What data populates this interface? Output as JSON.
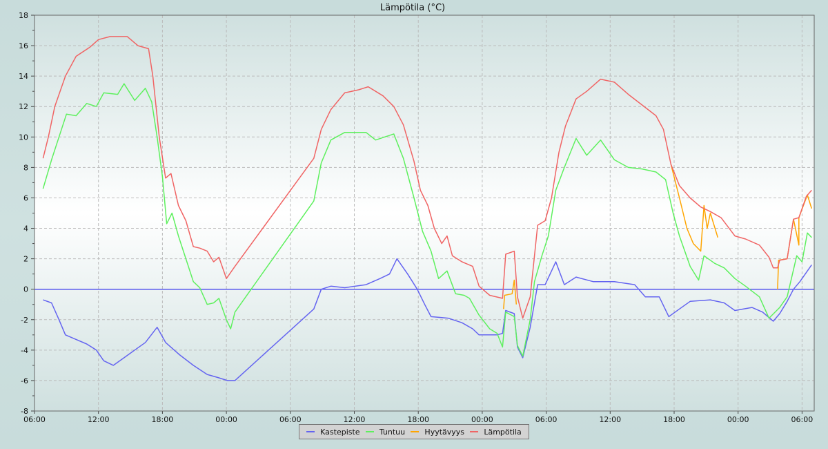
{
  "chart_data": {
    "type": "line",
    "title": "Lämpötila (°C)",
    "xlabel": "",
    "ylabel": "",
    "x_unit": "hours since first 06:00",
    "xlim": [
      0,
      73.5
    ],
    "ylim": [
      -8,
      18
    ],
    "grid": true,
    "legend_position": "bottom-center",
    "y_ticks": [
      -8,
      -6,
      -4,
      -2,
      0,
      2,
      4,
      6,
      8,
      10,
      12,
      14,
      16,
      18
    ],
    "x_ticks": [
      {
        "h": 0,
        "label": "06:00"
      },
      {
        "h": 6,
        "label": "12:00"
      },
      {
        "h": 12,
        "label": "18:00"
      },
      {
        "h": 18,
        "label": "00:00"
      },
      {
        "h": 24,
        "label": "06:00"
      },
      {
        "h": 30,
        "label": "12:00"
      },
      {
        "h": 36,
        "label": "18:00"
      },
      {
        "h": 42,
        "label": "00:00"
      },
      {
        "h": 48,
        "label": "06:00"
      },
      {
        "h": 54,
        "label": "12:00"
      },
      {
        "h": 60,
        "label": "18:00"
      },
      {
        "h": 66,
        "label": "00:00"
      },
      {
        "h": 72,
        "label": "06:00"
      }
    ],
    "zero_line_color": "#5555ee",
    "series": [
      {
        "name": "Kastepiste",
        "color": "#6464f0",
        "points": [
          [
            0.8,
            -0.7
          ],
          [
            1.6,
            -0.9
          ],
          [
            2.3,
            -2
          ],
          [
            2.9,
            -3
          ],
          [
            3.9,
            -3.3
          ],
          [
            4.9,
            -3.6
          ],
          [
            5.8,
            -4
          ],
          [
            6.5,
            -4.7
          ],
          [
            7.4,
            -5
          ],
          [
            8.4,
            -4.5
          ],
          [
            9.4,
            -4
          ],
          [
            10.4,
            -3.5
          ],
          [
            11.5,
            -2.5
          ],
          [
            12.3,
            -3.5
          ],
          [
            13.6,
            -4.3
          ],
          [
            14.9,
            -5
          ],
          [
            16.2,
            -5.6
          ],
          [
            17.2,
            -5.8
          ],
          [
            18.1,
            -6
          ],
          [
            18.8,
            -6
          ],
          [
            26.2,
            -1.3
          ],
          [
            26.9,
            0
          ],
          [
            27.8,
            0.2
          ],
          [
            29.1,
            0.1
          ],
          [
            31.1,
            0.3
          ],
          [
            32.4,
            0.7
          ],
          [
            33.3,
            1
          ],
          [
            34.0,
            2
          ],
          [
            35.0,
            1
          ],
          [
            35.9,
            0
          ],
          [
            36.6,
            -1
          ],
          [
            37.2,
            -1.8
          ],
          [
            38.8,
            -1.9
          ],
          [
            40.1,
            -2.2
          ],
          [
            41.1,
            -2.6
          ],
          [
            41.7,
            -3
          ],
          [
            43.4,
            -3
          ],
          [
            43.9,
            -2.9
          ],
          [
            44.2,
            -1.4
          ],
          [
            45.0,
            -1.6
          ],
          [
            45.3,
            -3.8
          ],
          [
            45.8,
            -4.5
          ],
          [
            46.5,
            -2.5
          ],
          [
            47.2,
            0.3
          ],
          [
            47.9,
            0.3
          ],
          [
            48.9,
            1.8
          ],
          [
            49.7,
            0.3
          ],
          [
            50.8,
            0.8
          ],
          [
            52.4,
            0.5
          ],
          [
            54.4,
            0.5
          ],
          [
            56.3,
            0.3
          ],
          [
            57.3,
            -0.5
          ],
          [
            58.6,
            -0.5
          ],
          [
            59.5,
            -1.8
          ],
          [
            60.5,
            -1.3
          ],
          [
            61.5,
            -0.8
          ],
          [
            63.4,
            -0.7
          ],
          [
            64.7,
            -0.9
          ],
          [
            65.7,
            -1.4
          ],
          [
            67.3,
            -1.2
          ],
          [
            68.3,
            -1.5
          ],
          [
            69.3,
            -2.1
          ],
          [
            69.9,
            -1.6
          ],
          [
            70.6,
            -0.8
          ],
          [
            71.2,
            0
          ],
          [
            71.8,
            0.5
          ],
          [
            72.9,
            1.6
          ]
        ]
      },
      {
        "name": "Tuntuu",
        "color": "#5ef05e",
        "points": [
          [
            0.8,
            6.6
          ],
          [
            1.6,
            8.5
          ],
          [
            2.3,
            10
          ],
          [
            3.0,
            11.5
          ],
          [
            3.9,
            11.4
          ],
          [
            4.9,
            12.2
          ],
          [
            5.8,
            12
          ],
          [
            6.5,
            12.9
          ],
          [
            7.8,
            12.8
          ],
          [
            8.4,
            13.5
          ],
          [
            9.4,
            12.4
          ],
          [
            10.4,
            13.2
          ],
          [
            11.0,
            12.3
          ],
          [
            11.5,
            10
          ],
          [
            12.0,
            7.4
          ],
          [
            12.4,
            4.3
          ],
          [
            12.9,
            5
          ],
          [
            13.5,
            3.5
          ],
          [
            14.2,
            2
          ],
          [
            14.9,
            0.5
          ],
          [
            15.5,
            0.1
          ],
          [
            16.2,
            -1
          ],
          [
            16.8,
            -0.9
          ],
          [
            17.3,
            -0.6
          ],
          [
            18.0,
            -2
          ],
          [
            18.4,
            -2.6
          ],
          [
            18.8,
            -1.5
          ],
          [
            26.2,
            5.8
          ],
          [
            26.9,
            8.3
          ],
          [
            27.8,
            9.8
          ],
          [
            29.1,
            10.3
          ],
          [
            31.1,
            10.3
          ],
          [
            32.0,
            9.8
          ],
          [
            33.7,
            10.2
          ],
          [
            34.6,
            8.6
          ],
          [
            35.6,
            6
          ],
          [
            36.4,
            3.8
          ],
          [
            37.2,
            2.5
          ],
          [
            37.9,
            0.7
          ],
          [
            38.7,
            1.2
          ],
          [
            39.5,
            -0.3
          ],
          [
            40.3,
            -0.4
          ],
          [
            40.8,
            -0.6
          ],
          [
            41.7,
            -1.7
          ],
          [
            42.7,
            -2.6
          ],
          [
            43.4,
            -2.9
          ],
          [
            43.9,
            -3.8
          ],
          [
            44.2,
            -1.5
          ],
          [
            45.0,
            -1.8
          ],
          [
            45.3,
            -3.7
          ],
          [
            45.8,
            -4.4
          ],
          [
            46.5,
            -2
          ],
          [
            46.9,
            0.5
          ],
          [
            47.6,
            2.2
          ],
          [
            48.2,
            3.5
          ],
          [
            48.9,
            6.5
          ],
          [
            49.7,
            8
          ],
          [
            50.8,
            9.9
          ],
          [
            51.8,
            8.8
          ],
          [
            53.1,
            9.8
          ],
          [
            54.4,
            8.5
          ],
          [
            55.7,
            8
          ],
          [
            57.0,
            7.9
          ],
          [
            58.3,
            7.7
          ],
          [
            59.2,
            7.2
          ],
          [
            59.9,
            5
          ],
          [
            60.5,
            3.5
          ],
          [
            61.5,
            1.5
          ],
          [
            62.3,
            0.6
          ],
          [
            62.8,
            2.2
          ],
          [
            63.8,
            1.7
          ],
          [
            64.7,
            1.4
          ],
          [
            65.7,
            0.7
          ],
          [
            66.7,
            0.2
          ],
          [
            68.0,
            -0.5
          ],
          [
            68.9,
            -1.9
          ],
          [
            69.9,
            -1.2
          ],
          [
            70.6,
            -0.5
          ],
          [
            71.5,
            2.2
          ],
          [
            72.0,
            1.8
          ],
          [
            72.5,
            3.7
          ],
          [
            72.9,
            3.4
          ]
        ]
      },
      {
        "name": "Hyytävyys",
        "color": "#ffa500",
        "points": [
          [
            44.0,
            -1.3
          ],
          [
            44.1,
            -0.4
          ],
          [
            44.8,
            -0.3
          ],
          [
            45.0,
            0.6
          ],
          [
            45.2,
            -1.0
          ],
          null,
          [
            59.7,
            8.2
          ],
          [
            60.5,
            6
          ],
          [
            61.2,
            4
          ],
          [
            61.8,
            3
          ],
          [
            62.5,
            2.5
          ],
          [
            62.8,
            5.5
          ],
          [
            63.1,
            4
          ],
          [
            63.4,
            5
          ],
          [
            64.1,
            3.4
          ],
          null,
          [
            69.7,
            0
          ],
          [
            69.8,
            1.9
          ],
          [
            70.6,
            2
          ],
          [
            71.2,
            4.6
          ],
          [
            71.7,
            2.9
          ],
          [
            71.7,
            4.7
          ],
          [
            72.5,
            6.2
          ],
          [
            72.9,
            5.3
          ]
        ]
      },
      {
        "name": "Lämpötila",
        "color": "#f06464",
        "points": [
          [
            0.8,
            8.6
          ],
          [
            1.3,
            10
          ],
          [
            1.9,
            12
          ],
          [
            2.9,
            14
          ],
          [
            3.9,
            15.3
          ],
          [
            5.2,
            15.9
          ],
          [
            6.0,
            16.4
          ],
          [
            7.1,
            16.6
          ],
          [
            8.7,
            16.6
          ],
          [
            9.7,
            16
          ],
          [
            10.7,
            15.8
          ],
          [
            11.1,
            14
          ],
          [
            11.7,
            10
          ],
          [
            12.3,
            7.3
          ],
          [
            12.8,
            7.6
          ],
          [
            13.5,
            5.5
          ],
          [
            14.2,
            4.5
          ],
          [
            14.9,
            2.8
          ],
          [
            15.5,
            2.7
          ],
          [
            16.2,
            2.5
          ],
          [
            16.8,
            1.8
          ],
          [
            17.3,
            2.1
          ],
          [
            18.0,
            0.7
          ],
          [
            18.8,
            1.5
          ],
          [
            26.2,
            8.6
          ],
          [
            26.9,
            10.5
          ],
          [
            27.8,
            11.8
          ],
          [
            29.1,
            12.9
          ],
          [
            30.4,
            13.1
          ],
          [
            31.3,
            13.3
          ],
          [
            32.7,
            12.7
          ],
          [
            33.7,
            12
          ],
          [
            34.6,
            10.8
          ],
          [
            35.6,
            8.4
          ],
          [
            36.2,
            6.5
          ],
          [
            36.9,
            5.5
          ],
          [
            37.5,
            4
          ],
          [
            38.2,
            3
          ],
          [
            38.7,
            3.5
          ],
          [
            39.2,
            2.2
          ],
          [
            40.1,
            1.8
          ],
          [
            41.1,
            1.5
          ],
          [
            41.7,
            0.2
          ],
          [
            42.7,
            -0.4
          ],
          [
            43.9,
            -0.6
          ],
          [
            44.2,
            2.3
          ],
          [
            45.0,
            2.5
          ],
          [
            45.3,
            -0.5
          ],
          [
            45.8,
            -1.9
          ],
          [
            46.5,
            -0.5
          ],
          [
            47.2,
            4.2
          ],
          [
            47.9,
            4.5
          ],
          [
            48.5,
            6
          ],
          [
            49.2,
            9
          ],
          [
            49.8,
            10.7
          ],
          [
            50.8,
            12.5
          ],
          [
            51.8,
            13
          ],
          [
            53.1,
            13.8
          ],
          [
            54.4,
            13.6
          ],
          [
            55.7,
            12.8
          ],
          [
            57.0,
            12.1
          ],
          [
            58.3,
            11.4
          ],
          [
            59.0,
            10.5
          ],
          [
            59.7,
            8.2
          ],
          [
            60.5,
            6.8
          ],
          [
            61.5,
            6
          ],
          [
            62.5,
            5.4
          ],
          [
            63.4,
            5.1
          ],
          [
            64.4,
            4.7
          ],
          [
            65.7,
            3.5
          ],
          [
            66.7,
            3.3
          ],
          [
            68.0,
            2.9
          ],
          [
            68.9,
            2.1
          ],
          [
            69.3,
            1.4
          ],
          [
            69.7,
            1.4
          ],
          [
            69.9,
            1.9
          ],
          [
            70.6,
            2
          ],
          [
            71.2,
            4.6
          ],
          [
            71.7,
            4.7
          ],
          [
            72.4,
            6.1
          ],
          [
            72.9,
            6.5
          ]
        ]
      }
    ]
  }
}
